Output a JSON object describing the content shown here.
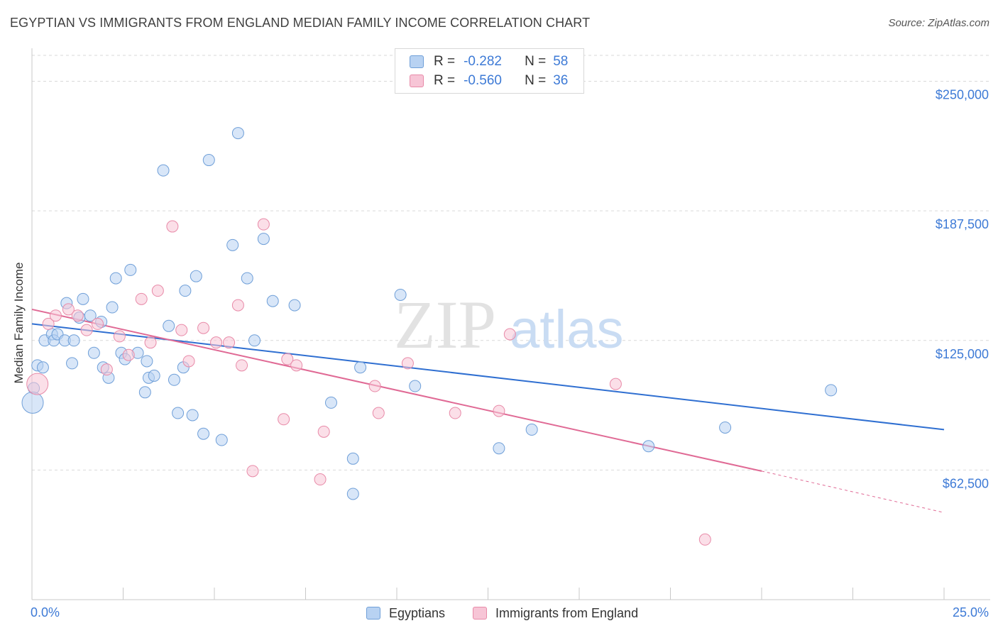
{
  "title": "EGYPTIAN VS IMMIGRANTS FROM ENGLAND MEDIAN FAMILY INCOME CORRELATION CHART",
  "source": "Source: ZipAtlas.com",
  "watermark": {
    "zip": "ZIP",
    "atlas": "atlas"
  },
  "legend": {
    "rows": [
      {
        "r_label": "R =",
        "r_value": "-0.282",
        "n_label": "N =",
        "n_value": "58"
      },
      {
        "r_label": "R =",
        "r_value": "-0.560",
        "n_label": "N =",
        "n_value": "36"
      }
    ]
  },
  "colors": {
    "blue_fill": "#b8d2f2",
    "blue_stroke": "#6f9fd8",
    "blue_line": "#2f6fd1",
    "pink_fill": "#f7c5d6",
    "pink_stroke": "#e88aa8",
    "pink_line": "#e06a95",
    "grid": "#d9d9d9",
    "axis_text": "#3d7ad6"
  },
  "chart_data": {
    "type": "scatter",
    "title": "EGYPTIAN VS IMMIGRANTS FROM ENGLAND MEDIAN FAMILY INCOME CORRELATION CHART",
    "xlabel": "",
    "ylabel": "Median Family Income",
    "xlim": [
      0,
      25
    ],
    "ylim": [
      0,
      262500
    ],
    "x_tick_labels": [
      "0.0%",
      "25.0%"
    ],
    "y_ticks": [
      62500,
      125000,
      187500,
      250000
    ],
    "y_tick_labels": [
      "$62,500",
      "$125,000",
      "$187,500",
      "$250,000"
    ],
    "grid": true,
    "series": [
      {
        "name": "Egyptians",
        "r": -0.282,
        "n": 58,
        "trend": {
          "x0": 0,
          "y0": 133000,
          "x1": 25,
          "y1": 82000
        },
        "points": [
          [
            0.05,
            102000
          ],
          [
            0.15,
            113000
          ],
          [
            0.3,
            112000
          ],
          [
            0.35,
            125000
          ],
          [
            0.55,
            128000
          ],
          [
            0.6,
            125000
          ],
          [
            0.7,
            128000
          ],
          [
            0.9,
            125000
          ],
          [
            0.95,
            143000
          ],
          [
            1.1,
            114000
          ],
          [
            1.15,
            125000
          ],
          [
            1.3,
            136000
          ],
          [
            1.4,
            145000
          ],
          [
            1.6,
            137000
          ],
          [
            1.7,
            119000
          ],
          [
            1.9,
            134000
          ],
          [
            1.95,
            112000
          ],
          [
            2.1,
            107000
          ],
          [
            2.2,
            141000
          ],
          [
            2.3,
            155000
          ],
          [
            2.45,
            119000
          ],
          [
            2.55,
            116000
          ],
          [
            2.7,
            159000
          ],
          [
            2.9,
            119000
          ],
          [
            3.1,
            100000
          ],
          [
            3.15,
            115000
          ],
          [
            3.2,
            107000
          ],
          [
            3.35,
            108000
          ],
          [
            3.6,
            207000
          ],
          [
            3.75,
            132000
          ],
          [
            3.9,
            106000
          ],
          [
            4.0,
            90000
          ],
          [
            4.15,
            112000
          ],
          [
            4.2,
            149000
          ],
          [
            4.4,
            89000
          ],
          [
            4.5,
            156000
          ],
          [
            4.7,
            80000
          ],
          [
            4.85,
            212000
          ],
          [
            5.2,
            77000
          ],
          [
            5.5,
            171000
          ],
          [
            5.65,
            225000
          ],
          [
            5.9,
            155000
          ],
          [
            6.1,
            125000
          ],
          [
            6.35,
            174000
          ],
          [
            6.6,
            144000
          ],
          [
            7.2,
            142000
          ],
          [
            8.2,
            95000
          ],
          [
            8.8,
            68000
          ],
          [
            8.8,
            51000
          ],
          [
            9.0,
            112000
          ],
          [
            10.1,
            147000
          ],
          [
            10.5,
            103000
          ],
          [
            12.8,
            73000
          ],
          [
            13.7,
            82000
          ],
          [
            16.9,
            74000
          ],
          [
            19.0,
            83000
          ],
          [
            21.9,
            101000
          ],
          [
            0.02,
            95000
          ]
        ]
      },
      {
        "name": "Immigrants from England",
        "r": -0.56,
        "n": 36,
        "trend": {
          "x0": 0,
          "y0": 140000,
          "x1": 20,
          "y1": 62000,
          "dash_to_x": 25,
          "dash_to_y": 42000
        },
        "points": [
          [
            0.15,
            104000
          ],
          [
            0.45,
            133000
          ],
          [
            0.65,
            137000
          ],
          [
            1.0,
            140000
          ],
          [
            1.25,
            137000
          ],
          [
            1.5,
            130000
          ],
          [
            1.8,
            133000
          ],
          [
            2.05,
            111000
          ],
          [
            2.4,
            127000
          ],
          [
            2.65,
            118000
          ],
          [
            3.0,
            145000
          ],
          [
            3.25,
            124000
          ],
          [
            3.45,
            149000
          ],
          [
            3.85,
            180000
          ],
          [
            4.1,
            130000
          ],
          [
            4.3,
            115000
          ],
          [
            4.7,
            131000
          ],
          [
            5.05,
            124000
          ],
          [
            5.4,
            124000
          ],
          [
            5.65,
            142000
          ],
          [
            5.75,
            113000
          ],
          [
            6.05,
            62000
          ],
          [
            6.35,
            181000
          ],
          [
            6.9,
            87000
          ],
          [
            7.0,
            116000
          ],
          [
            7.25,
            113000
          ],
          [
            7.9,
            58000
          ],
          [
            8.0,
            81000
          ],
          [
            9.4,
            103000
          ],
          [
            9.5,
            90000
          ],
          [
            10.3,
            114000
          ],
          [
            11.6,
            90000
          ],
          [
            12.8,
            91000
          ],
          [
            13.1,
            128000
          ],
          [
            16.0,
            104000
          ],
          [
            18.45,
            29000
          ]
        ]
      }
    ]
  },
  "bottom_legend": [
    {
      "label": "Egyptians"
    },
    {
      "label": "Immigrants from England"
    }
  ]
}
